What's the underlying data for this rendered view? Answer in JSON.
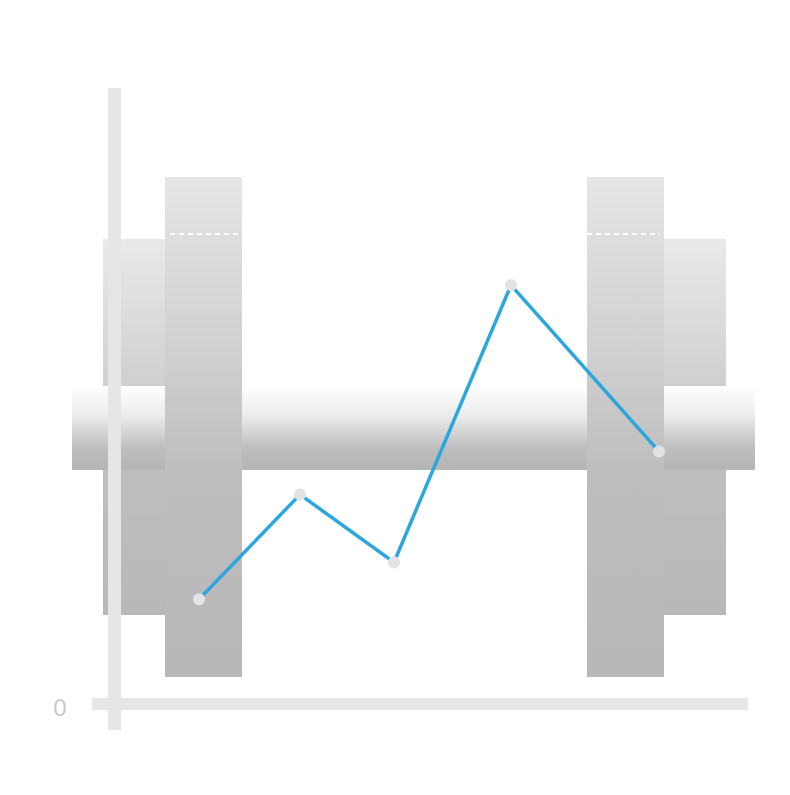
{
  "chart_data": {
    "type": "line",
    "title": "",
    "xlabel": "",
    "ylabel": "",
    "y_tick_labels": [
      "0"
    ],
    "ylim": [
      0,
      100
    ],
    "x": [
      1,
      2,
      3,
      4,
      5
    ],
    "series": [
      {
        "values": [
          17,
          34,
          23,
          68,
          41
        ]
      }
    ],
    "colors": {
      "line": "#2ba6de",
      "marker": "#e3e3e3",
      "axis": "#e6e6e6"
    },
    "background_illustration": "dumbbell-icon",
    "grid": false,
    "legend": "none"
  }
}
